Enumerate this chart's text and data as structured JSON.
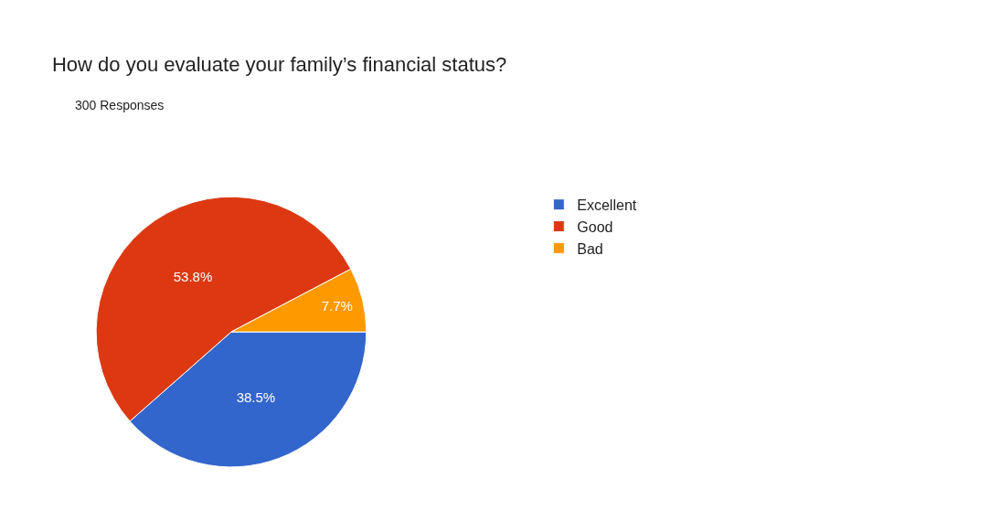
{
  "chart_data": {
    "type": "pie",
    "title": "How do you evaluate your family’s financial status?",
    "subtitle": "300 Responses",
    "categories": [
      "Excellent",
      "Good",
      "Bad"
    ],
    "values": [
      38.5,
      53.8,
      7.7
    ],
    "value_labels": [
      "38.5%",
      "53.8%",
      "7.7%"
    ],
    "colors": [
      "#3366cc",
      "#dc3912",
      "#ff9900"
    ],
    "legend": "right"
  }
}
